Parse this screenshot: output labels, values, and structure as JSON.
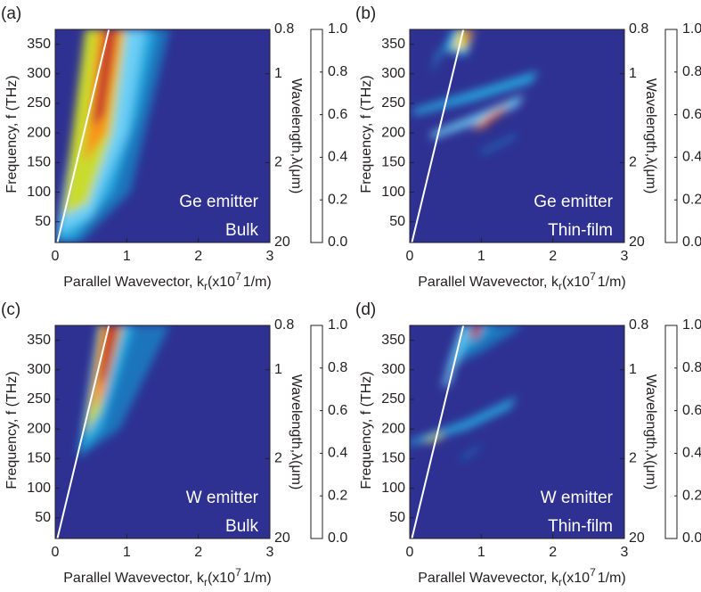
{
  "chart_data": [
    {
      "type": "contour",
      "title": "(a)",
      "annotations": [
        "Ge emitter",
        "Bulk"
      ],
      "xlabel": [
        "Parallel Wavevector, k",
        "r",
        "(x10",
        "7",
        "1/m)"
      ],
      "ylabel": "Frequency, f (THz)",
      "y2label": "Wavelength,λ(μm)",
      "xlim": [
        0,
        3
      ],
      "xticks": [
        0,
        1,
        2,
        3
      ],
      "ylim": [
        15,
        375
      ],
      "yticks": [
        50,
        100,
        150,
        200,
        250,
        300,
        350
      ],
      "y2lim": [
        0.8,
        20
      ],
      "y2ticks": [
        0.8,
        1,
        2,
        20
      ],
      "y2scale": "reciprocal",
      "background": "#2e3192",
      "colorbar": {
        "lim": [
          0,
          1
        ],
        "ticks": [
          {
            "value": 0,
            "label": "0.0"
          },
          {
            "value": 0.2,
            "label": "0.2"
          },
          {
            "value": 0.4,
            "label": "0.4"
          },
          {
            "value": 0.6,
            "label": "0.6"
          },
          {
            "value": 0.8,
            "label": "0.8"
          },
          {
            "value": 1,
            "label": "1.0"
          }
        ],
        "colormap": [
          "#2e3192",
          "#1c75bc",
          "#27aae1",
          "#8dc63f",
          "#f7ec13",
          "#f7941d",
          "#ed1c24",
          "#9e1f22"
        ]
      }
    },
    {
      "type": "contour",
      "title": "(b)",
      "annotations": [
        "Ge emitter",
        "Thin-film"
      ],
      "xlabel": [
        "Parallel Wavevector, k",
        "r",
        "(x10",
        "7",
        "1/m)"
      ],
      "ylabel": "Frequency, f (THz)",
      "y2label": "Wavelength,λ(μm)",
      "xlim": [
        0,
        3
      ],
      "xticks": [
        0,
        1,
        2,
        3
      ],
      "ylim": [
        15,
        375
      ],
      "yticks": [
        50,
        100,
        150,
        200,
        250,
        300,
        350
      ],
      "y2lim": [
        0.8,
        20
      ],
      "y2ticks": [
        0.8,
        1,
        2,
        20
      ],
      "y2scale": "reciprocal",
      "background": "#2e3192",
      "colorbar": {
        "lim": [
          0,
          1
        ],
        "ticks": [
          {
            "value": 0,
            "label": "0.0"
          },
          {
            "value": 0.2,
            "label": "0.2"
          },
          {
            "value": 0.4,
            "label": "0.4"
          },
          {
            "value": 0.6,
            "label": "0.6"
          },
          {
            "value": 0.8,
            "label": "0.8"
          },
          {
            "value": 1,
            "label": "1.0"
          }
        ],
        "colormap": [
          "#2e3192",
          "#1c75bc",
          "#27aae1",
          "#8dc63f",
          "#f7ec13",
          "#f7941d",
          "#ed1c24",
          "#9e1f22"
        ]
      }
    },
    {
      "type": "contour",
      "title": "(c)",
      "annotations": [
        "W emitter",
        "Bulk"
      ],
      "xlabel": [
        "Parallel Wavevector, k",
        "r",
        "(x10",
        "7",
        "1/m)"
      ],
      "ylabel": "Frequency, f (THz)",
      "y2label": "Wavelength,λ(μm)",
      "xlim": [
        0,
        3
      ],
      "xticks": [
        0,
        1,
        2,
        3
      ],
      "ylim": [
        15,
        375
      ],
      "yticks": [
        50,
        100,
        150,
        200,
        250,
        300,
        350
      ],
      "y2lim": [
        0.8,
        20
      ],
      "y2ticks": [
        0.8,
        1,
        2,
        20
      ],
      "y2scale": "reciprocal",
      "background": "#2e3192",
      "colorbar": {
        "lim": [
          0,
          1
        ],
        "ticks": [
          {
            "value": 0,
            "label": "0.0"
          },
          {
            "value": 0.2,
            "label": "0.2"
          },
          {
            "value": 0.4,
            "label": "0.4"
          },
          {
            "value": 0.6,
            "label": "0.6"
          },
          {
            "value": 0.8,
            "label": "0.8"
          },
          {
            "value": 1,
            "label": "1.0"
          }
        ],
        "colormap": [
          "#2e3192",
          "#1c75bc",
          "#27aae1",
          "#8dc63f",
          "#f7ec13",
          "#f7941d",
          "#ed1c24",
          "#9e1f22"
        ]
      }
    },
    {
      "type": "contour",
      "title": "(d)",
      "annotations": [
        "W emitter",
        "Thin-film"
      ],
      "xlabel": [
        "Parallel Wavevector, k",
        "r",
        "(x10",
        "7",
        "1/m)"
      ],
      "ylabel": "Frequency, f (THz)",
      "y2label": "Wavelength,λ(μm)",
      "xlim": [
        0,
        3
      ],
      "xticks": [
        0,
        1,
        2,
        3
      ],
      "ylim": [
        15,
        375
      ],
      "yticks": [
        50,
        100,
        150,
        200,
        250,
        300,
        350
      ],
      "y2lim": [
        0.8,
        20
      ],
      "y2ticks": [
        0.8,
        1,
        2,
        20
      ],
      "y2scale": "reciprocal",
      "background": "#2e3192",
      "colorbar": {
        "lim": [
          0,
          1
        ],
        "ticks": [
          {
            "value": 0,
            "label": "0.0"
          },
          {
            "value": 0.2,
            "label": "0.2"
          },
          {
            "value": 0.4,
            "label": "0.4"
          },
          {
            "value": 0.6,
            "label": "0.6"
          },
          {
            "value": 0.8,
            "label": "0.8"
          },
          {
            "value": 1,
            "label": "1.0"
          }
        ],
        "colormap": [
          "#2e3192",
          "#1c75bc",
          "#27aae1",
          "#8dc63f",
          "#f7ec13",
          "#f7941d",
          "#ed1c24",
          "#9e1f22"
        ]
      }
    }
  ]
}
